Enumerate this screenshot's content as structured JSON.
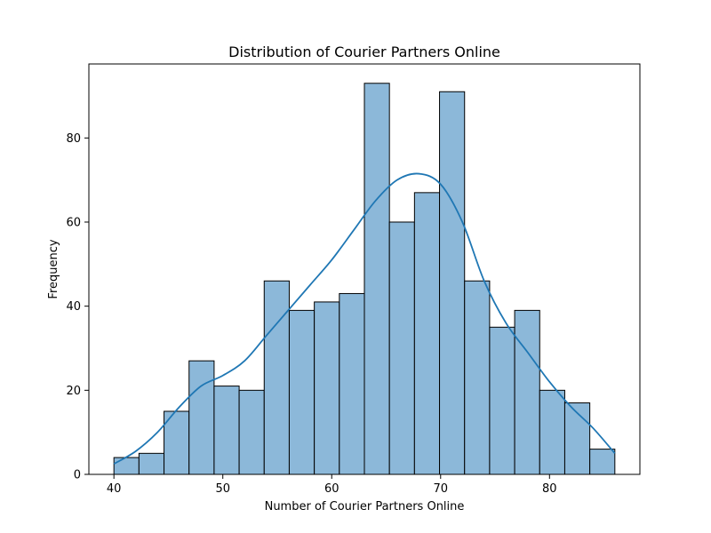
{
  "chart_data": {
    "type": "bar",
    "title": "Distribution of Courier Partners Online",
    "xlabel": "Number of Courier Partners Online",
    "ylabel": "Frequency",
    "xlim": [
      37.7,
      88.3
    ],
    "ylim": [
      0,
      97.6
    ],
    "x_ticks": [
      40,
      50,
      60,
      70,
      80
    ],
    "y_ticks": [
      0,
      20,
      40,
      60,
      80
    ],
    "bin_edges": [
      40.0,
      42.3,
      44.6,
      46.9,
      49.2,
      51.5,
      53.8,
      56.1,
      58.4,
      60.7,
      63.0,
      65.3,
      67.6,
      69.9,
      72.2,
      74.5,
      76.8,
      79.1,
      81.4,
      83.7,
      86.0
    ],
    "values": [
      4,
      5,
      15,
      27,
      21,
      20,
      46,
      39,
      41,
      43,
      93,
      60,
      67,
      91,
      46,
      35,
      39,
      20,
      17,
      6
    ],
    "kde_curve": {
      "x": [
        40,
        42,
        44,
        46,
        48,
        50,
        52,
        54,
        56,
        58,
        60,
        62,
        64,
        66,
        68,
        70,
        72,
        74,
        76,
        78,
        80,
        82,
        84,
        86
      ],
      "y": [
        2.5,
        5.5,
        10,
        16,
        21,
        23.5,
        27,
        33,
        39,
        45,
        51,
        58,
        65,
        70,
        71.5,
        69,
        60,
        46,
        36,
        29,
        22,
        16,
        11,
        5
      ]
    },
    "bar_fill": "#8cb8d9",
    "bar_edge": "#000000",
    "kde_color": "#1f77b4",
    "grid": false,
    "legend": "none"
  }
}
